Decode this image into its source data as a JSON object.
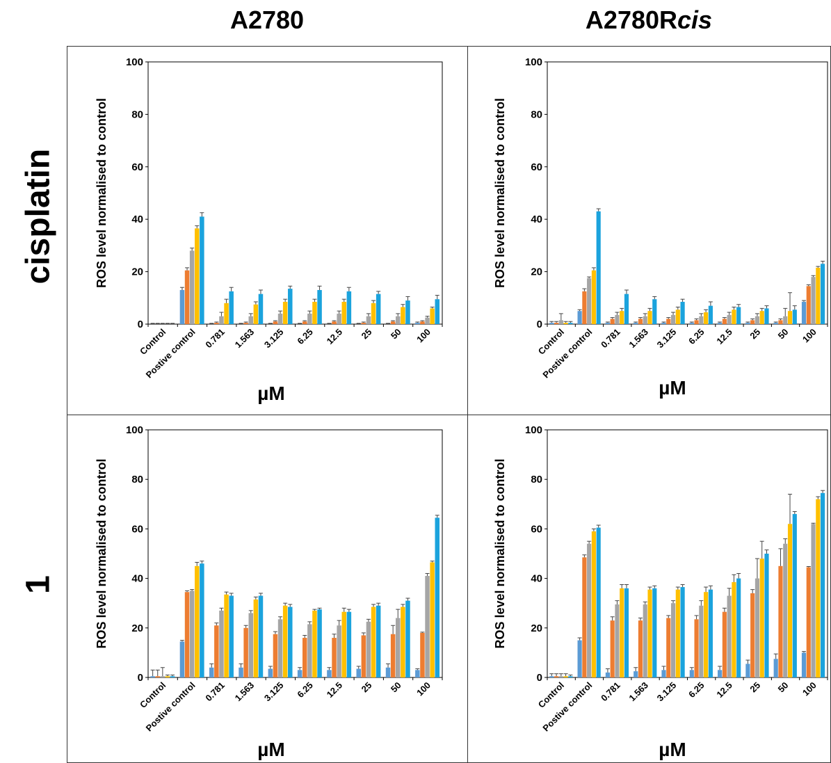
{
  "column_titles": {
    "left": "A2780",
    "right_base": "A2780R",
    "right_italic": "cis"
  },
  "row_titles": {
    "top": "cisplatin",
    "bottom": "1"
  },
  "colors": {
    "series": [
      "#5b9bd5",
      "#ed7d31",
      "#a5a5a5",
      "#ffc000",
      "#1ba3dd"
    ]
  },
  "chart_data": [
    {
      "type": "bar",
      "panel": "cisplatin / A2780",
      "xlabel": "µM",
      "ylabel": "ROS level normalised to control",
      "ylim": [
        0,
        100
      ],
      "yticks": [
        0,
        20,
        40,
        60,
        80,
        100
      ],
      "categories": [
        "Control",
        "Postive control",
        "0.781",
        "1.563",
        "3.125",
        "6.25",
        "12.5",
        "25",
        "50",
        "100"
      ],
      "series": [
        {
          "values": [
            0,
            13,
            0,
            0,
            0,
            0,
            0,
            0,
            0,
            0.5
          ]
        },
        {
          "values": [
            0,
            20.5,
            0.5,
            0.5,
            1,
            1,
            1,
            0.5,
            1,
            1
          ]
        },
        {
          "values": [
            0,
            28,
            3,
            3,
            4,
            4,
            4,
            3,
            3,
            2.5
          ]
        },
        {
          "values": [
            0,
            36.5,
            8,
            7.5,
            8.5,
            8.5,
            8.5,
            8,
            6.5,
            6
          ]
        },
        {
          "values": [
            0,
            41,
            12.5,
            11.5,
            13.5,
            13,
            12.5,
            11.5,
            9,
            9.5
          ]
        }
      ],
      "errors": [
        [
          0.3,
          1,
          0.3,
          0.3,
          0.3,
          0.3,
          0.3,
          0.3,
          0.3,
          0.3
        ],
        [
          0.3,
          1,
          0.3,
          0.3,
          0.3,
          0.3,
          0.3,
          0.3,
          0.3,
          0.3
        ],
        [
          0.3,
          1,
          1.5,
          1,
          1,
          1,
          1,
          1,
          1,
          0.5
        ],
        [
          0.3,
          1,
          1.5,
          1,
          1,
          1,
          1,
          1,
          1,
          0.5
        ],
        [
          0.3,
          1.5,
          1.5,
          1.5,
          1,
          1.5,
          1.5,
          1,
          1.5,
          1.5
        ]
      ]
    },
    {
      "type": "bar",
      "panel": "cisplatin / A2780Rcis",
      "xlabel": "µM",
      "ylabel": "ROS level normalised to control",
      "ylim": [
        0,
        100
      ],
      "yticks": [
        0,
        20,
        40,
        60,
        80,
        100
      ],
      "categories": [
        "Control",
        "Postive control",
        "0.781",
        "1.563",
        "3.125",
        "6.25",
        "12.5",
        "25",
        "50",
        "100"
      ],
      "series": [
        {
          "values": [
            0.5,
            5,
            0.5,
            0.5,
            0.5,
            0.5,
            0.5,
            0.5,
            0.5,
            8.5
          ]
        },
        {
          "values": [
            0.5,
            12.5,
            2,
            2,
            2,
            1.5,
            2,
            1.5,
            1.5,
            14.5
          ]
        },
        {
          "values": [
            1.5,
            17.5,
            3.5,
            3,
            3.5,
            3,
            3.5,
            3,
            3,
            18
          ]
        },
        {
          "values": [
            0.5,
            20.5,
            5,
            5,
            5.5,
            4.5,
            5.5,
            5,
            5,
            21.5
          ]
        },
        {
          "values": [
            0.5,
            43,
            11.5,
            9.5,
            8.5,
            7,
            6.5,
            6,
            5.5,
            23
          ]
        }
      ],
      "errors": [
        [
          0.5,
          0.5,
          0.3,
          0.3,
          0.3,
          0.3,
          0.3,
          0.3,
          0.3,
          0.5
        ],
        [
          0.5,
          1,
          0.5,
          0.5,
          0.5,
          0.5,
          0.5,
          0.5,
          0.5,
          0.5
        ],
        [
          2.5,
          0.5,
          1,
          1,
          1,
          1,
          1,
          1,
          3,
          0.5
        ],
        [
          0.5,
          1,
          1,
          1,
          1,
          1,
          1,
          1,
          7,
          0.5
        ],
        [
          0.5,
          1,
          1.5,
          1,
          1,
          1.5,
          1,
          1,
          1.5,
          1
        ]
      ]
    },
    {
      "type": "bar",
      "panel": "1 / A2780",
      "xlabel": "µM",
      "ylabel": "ROS level normalised to control",
      "ylim": [
        0,
        100
      ],
      "yticks": [
        0,
        20,
        40,
        60,
        80,
        100
      ],
      "categories": [
        "Control",
        "Postive control",
        "0.781",
        "1.563",
        "3.125",
        "6.25",
        "12.5",
        "25",
        "50",
        "100"
      ],
      "series": [
        {
          "values": [
            0.5,
            14.5,
            4,
            4,
            3.5,
            3,
            3,
            3.5,
            4,
            3
          ]
        },
        {
          "values": [
            0.5,
            34.5,
            21,
            20,
            17.5,
            16,
            16,
            17,
            17.5,
            18
          ]
        },
        {
          "values": [
            0.5,
            35,
            27,
            26,
            23.5,
            21.5,
            21,
            22.5,
            24,
            41
          ]
        },
        {
          "values": [
            0.5,
            45,
            33.5,
            31.5,
            29,
            27,
            26.5,
            28.5,
            28.5,
            46.5
          ]
        },
        {
          "values": [
            0.5,
            46,
            33,
            33,
            28.5,
            27.5,
            26.5,
            29,
            31,
            64.5
          ]
        }
      ],
      "errors": [
        [
          2.5,
          0.5,
          1.5,
          1.5,
          1,
          1,
          1,
          1,
          1.5,
          0.5
        ],
        [
          2.5,
          0.5,
          1,
          1,
          1,
          1,
          1.5,
          1,
          3.5,
          0.3
        ],
        [
          3.5,
          0.5,
          1,
          1,
          1,
          1,
          2,
          1,
          3.5,
          1
        ],
        [
          0.5,
          1.5,
          1,
          1,
          1,
          0.5,
          1.5,
          1,
          1,
          0.5
        ],
        [
          0.5,
          1,
          1,
          1,
          1,
          0.5,
          1,
          1,
          1,
          1
        ]
      ]
    },
    {
      "type": "bar",
      "panel": "1 / A2780Rcis",
      "xlabel": "µM",
      "ylabel": "ROS level normalised to control",
      "ylim": [
        0,
        100
      ],
      "yticks": [
        0,
        20,
        40,
        60,
        80,
        100
      ],
      "categories": [
        "Control",
        "Postive control",
        "0.781",
        "1.563",
        "3.125",
        "6.25",
        "12.5",
        "25",
        "50",
        "100"
      ],
      "series": [
        {
          "values": [
            0.5,
            15,
            2,
            2.5,
            3,
            3,
            3,
            5.5,
            7.5,
            10
          ]
        },
        {
          "values": [
            0.5,
            48.5,
            23,
            23,
            24,
            23.5,
            26.5,
            34,
            45,
            44.5
          ]
        },
        {
          "values": [
            0.5,
            54,
            29.5,
            29.5,
            30,
            29,
            33,
            40,
            54,
            62
          ]
        },
        {
          "values": [
            0.5,
            59,
            36,
            35.5,
            35.5,
            34.5,
            38.5,
            48,
            62,
            72
          ]
        },
        {
          "values": [
            0.5,
            60.5,
            36,
            36,
            36.5,
            35.5,
            40,
            50,
            66,
            74.5
          ]
        }
      ],
      "errors": [
        [
          1,
          1,
          1.5,
          1.5,
          1.5,
          1,
          1.5,
          1.5,
          2,
          0.5
        ],
        [
          1,
          1,
          1.5,
          1,
          1,
          1.5,
          1.5,
          1.5,
          7,
          0.3
        ],
        [
          1,
          1,
          1.5,
          1,
          1,
          2,
          3,
          8,
          2,
          0.3
        ],
        [
          1,
          1,
          1.5,
          1,
          1,
          2,
          3,
          7,
          12,
          1
        ],
        [
          0.5,
          1,
          1.5,
          1,
          1,
          1.5,
          2,
          1.5,
          1,
          1
        ]
      ]
    }
  ]
}
